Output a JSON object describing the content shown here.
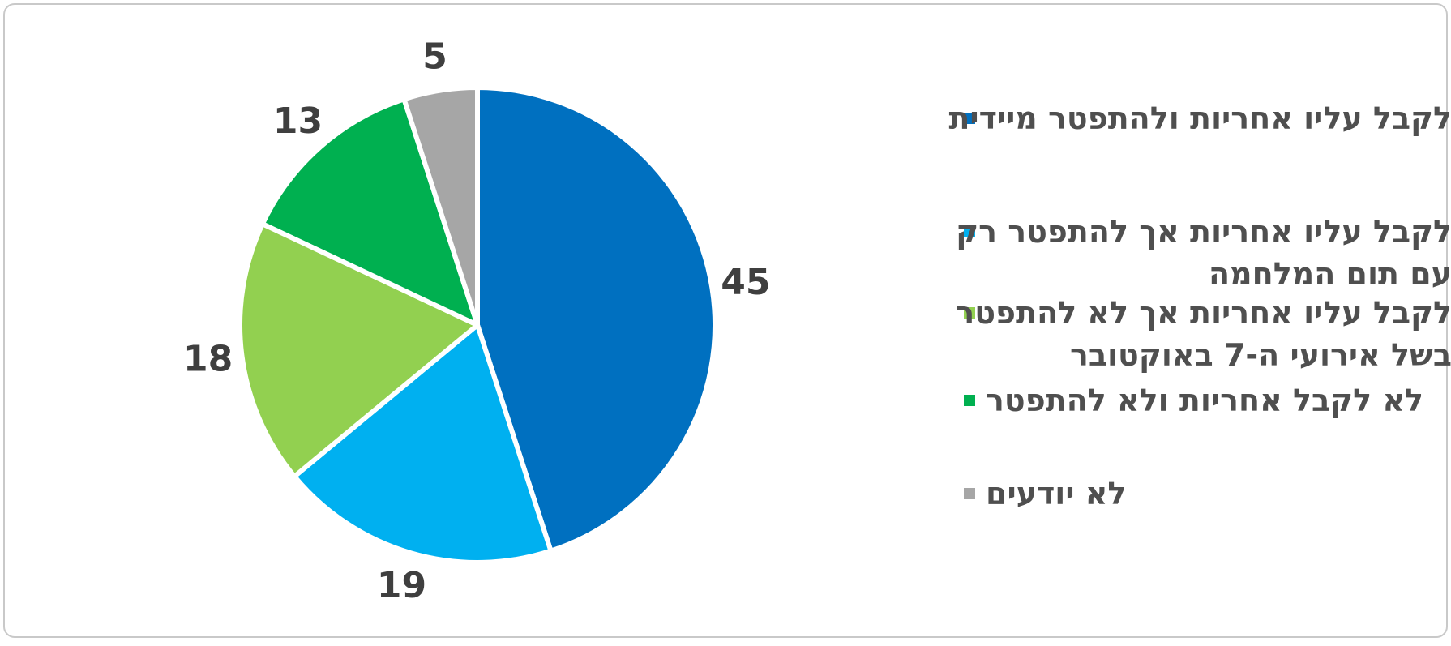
{
  "chart_data": {
    "type": "pie",
    "title": "",
    "legend_position": "right",
    "text_direction": "rtl",
    "rotation": "clockwise",
    "start_angle_deg": 0,
    "total": 100,
    "slices": [
      {
        "label": "לקבל עליו אחריות ולהתפטר מיידית",
        "label_lines": [
          "לקבל עליו אחריות ולהתפטר מיידית"
        ],
        "value": 45,
        "color": "#0070C0"
      },
      {
        "label": "לקבל עליו אחריות אך להתפטר רק עם תום המלחמה",
        "label_lines": [
          "לקבל עליו אחריות אך להתפטר רק",
          "עם תום המלחמה"
        ],
        "value": 19,
        "color": "#00B0F0"
      },
      {
        "label": "לקבל עליו אחריות אך לא להתפטר בשל אירועי ה-7 באוקטובר",
        "label_lines": [
          "לקבל עליו אחריות אך לא להתפטר",
          "בשל אירועי ה-7 באוקטובר"
        ],
        "value": 18,
        "color": "#92D050"
      },
      {
        "label": "לא לקבל אחריות ולא להתפטר",
        "label_lines": [
          "לא לקבל אחריות ולא להתפטר"
        ],
        "value": 13,
        "color": "#00B050"
      },
      {
        "label": "לא יודעים",
        "label_lines": [
          "לא יודעים"
        ],
        "value": 5,
        "color": "#A6A6A6"
      }
    ],
    "colors": {
      "value_label": "#3F3F3F",
      "legend_text": "#4F4F4F",
      "slice_gap_stroke": "#FFFFFF",
      "canvas_border": "#C9C9C9",
      "background": "#FFFFFF"
    }
  }
}
